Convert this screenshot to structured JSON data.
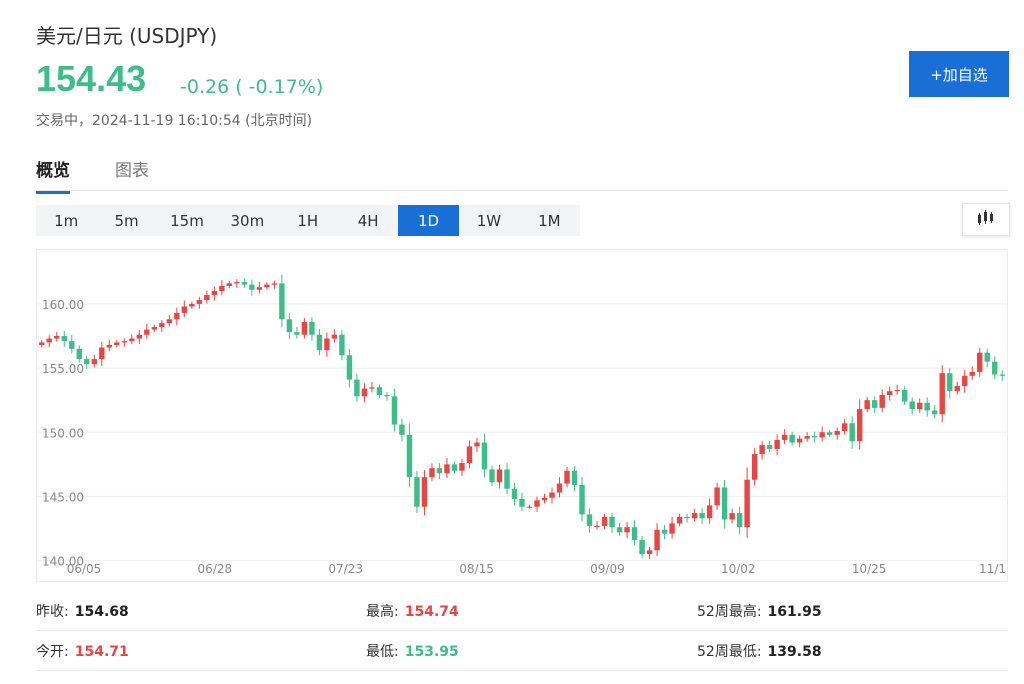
{
  "header": {
    "title": "美元/日元  (USDJPY)",
    "price": "154.43",
    "change": "-0.26 ( -0.17%)",
    "status": "交易中，2024-11-19 16:10:54 (北京时间)",
    "add_button": "+加自选"
  },
  "tabs": [
    "概览",
    "图表"
  ],
  "ranges": [
    "1m",
    "5m",
    "15m",
    "30m",
    "1H",
    "4H",
    "1D",
    "1W",
    "1M"
  ],
  "active_range": "1D",
  "chart_type_icon": "candlestick-icon",
  "colors": {
    "up": "#e84545",
    "down": "#3dbd8a",
    "accent": "#1a6fd6"
  },
  "chart_data": {
    "type": "candlestick",
    "x_ticks": [
      "06/05",
      "06/28",
      "07/23",
      "08/15",
      "09/09",
      "10/02",
      "10/25",
      "11/1"
    ],
    "y_ticks": [
      "160.00",
      "155.00",
      "150.00",
      "145.00",
      "140.00"
    ],
    "ylim": [
      139.5,
      163.5
    ],
    "grid": true,
    "closes": [
      157.0,
      157.3,
      157.5,
      157.1,
      156.5,
      155.7,
      155.3,
      155.7,
      156.6,
      156.8,
      157.0,
      157.1,
      157.3,
      157.6,
      158.0,
      158.2,
      158.5,
      158.8,
      159.3,
      159.8,
      160.0,
      160.3,
      160.7,
      161.0,
      161.4,
      161.6,
      161.7,
      161.5,
      161.1,
      161.3,
      161.5,
      161.6,
      158.8,
      157.8,
      157.6,
      158.6,
      157.6,
      156.4,
      157.3,
      157.6,
      156.0,
      154.1,
      152.8,
      153.4,
      153.5,
      152.9,
      152.8,
      150.6,
      149.8,
      146.5,
      144.2,
      146.5,
      147.2,
      146.8,
      147.5,
      147.0,
      147.6,
      148.9,
      149.2,
      147.1,
      146.1,
      147.1,
      145.6,
      144.8,
      144.2,
      144.2,
      144.7,
      144.9,
      145.3,
      146.0,
      147.0,
      145.9,
      143.6,
      142.7,
      142.7,
      143.4,
      142.6,
      142.2,
      142.6,
      141.6,
      140.5,
      140.8,
      142.4,
      142.1,
      142.9,
      143.4,
      143.3,
      143.7,
      143.3,
      144.3,
      145.7,
      143.2,
      143.7,
      142.6,
      146.3,
      148.3,
      149.0,
      148.7,
      149.4,
      149.8,
      149.2,
      149.5,
      149.7,
      149.6,
      150.0,
      149.8,
      150.1,
      150.7,
      149.3,
      151.8,
      152.5,
      151.9,
      152.9,
      153.2,
      153.3,
      152.4,
      151.8,
      152.3,
      151.7,
      151.4,
      154.6,
      153.2,
      153.6,
      154.4,
      154.7,
      156.2,
      155.5,
      154.5,
      154.4
    ],
    "price": 154.43,
    "prev_close": 154.68,
    "open": 154.71,
    "high": 154.74,
    "low": 153.95
  },
  "stats": {
    "prev_close": {
      "label": "昨收:",
      "value": "154.68"
    },
    "high": {
      "label": "最高:",
      "value": "154.74"
    },
    "week52_high": {
      "label": "52周最高:",
      "value": "161.95"
    },
    "open": {
      "label": "今开:",
      "value": "154.71"
    },
    "low": {
      "label": "最低:",
      "value": "153.95"
    },
    "week52_low": {
      "label": "52周最低:",
      "value": "139.58"
    }
  }
}
